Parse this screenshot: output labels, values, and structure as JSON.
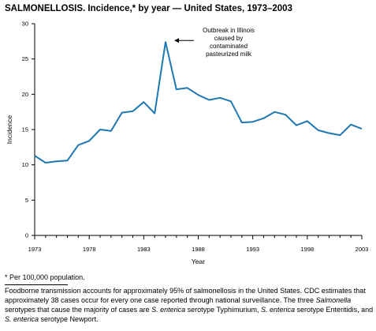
{
  "title": "SALMONELLOSIS. Incidence,* by year — United States, 1973–2003",
  "footnote": "* Per 100,000 population.",
  "description": [
    {
      "text": "Foodborne transmission accounts for approximately 95% of salmonellosis in the United States. CDC estimates that approximately 38 cases occur for every one case reported through national surveillance. The three ",
      "italic": false
    },
    {
      "text": "Salmonella",
      "italic": true
    },
    {
      "text": " serotypes that cause the majority of cases are ",
      "italic": false
    },
    {
      "text": "S. enterica",
      "italic": true
    },
    {
      "text": " serotype Typhimurium, ",
      "italic": false
    },
    {
      "text": "S. enterica",
      "italic": true
    },
    {
      "text": " serotype Enteritidis, and ",
      "italic": false
    },
    {
      "text": "S. enterica",
      "italic": true
    },
    {
      "text": " serotype Newport.",
      "italic": false
    }
  ],
  "colors": {
    "line": "#1f77b4",
    "axis": "#000000"
  },
  "chart_data": {
    "type": "line",
    "xlabel": "Year",
    "ylabel": "Incidence",
    "xlim": [
      1973,
      2003
    ],
    "ylim": [
      0,
      30
    ],
    "xticks": [
      1973,
      1978,
      1983,
      1988,
      1993,
      1998,
      2003
    ],
    "yticks": [
      0,
      5,
      10,
      15,
      20,
      25,
      30
    ],
    "grid": false,
    "series": [
      {
        "x": [
          1973,
          1974,
          1975,
          1976,
          1977,
          1978,
          1979,
          1980,
          1981,
          1982,
          1983,
          1984,
          1985,
          1986,
          1987,
          1988,
          1989,
          1990,
          1991,
          1992,
          1993,
          1994,
          1995,
          1996,
          1997,
          1998,
          1999,
          2000,
          2001,
          2002,
          2003
        ],
        "y": [
          11.3,
          10.3,
          10.5,
          10.6,
          12.8,
          13.4,
          15.0,
          14.8,
          17.4,
          17.6,
          18.9,
          17.3,
          27.4,
          20.7,
          20.9,
          19.9,
          19.2,
          19.5,
          19.0,
          16.0,
          16.1,
          16.6,
          17.5,
          17.1,
          15.6,
          16.2,
          14.9,
          14.5,
          14.2,
          15.7,
          15.1
        ]
      }
    ],
    "annotations": [
      {
        "lines": [
          "Outbreak in Illinois",
          "caused by",
          "contaminated",
          "pasteurized milk"
        ],
        "x": 1985,
        "y": 27.4
      }
    ]
  }
}
